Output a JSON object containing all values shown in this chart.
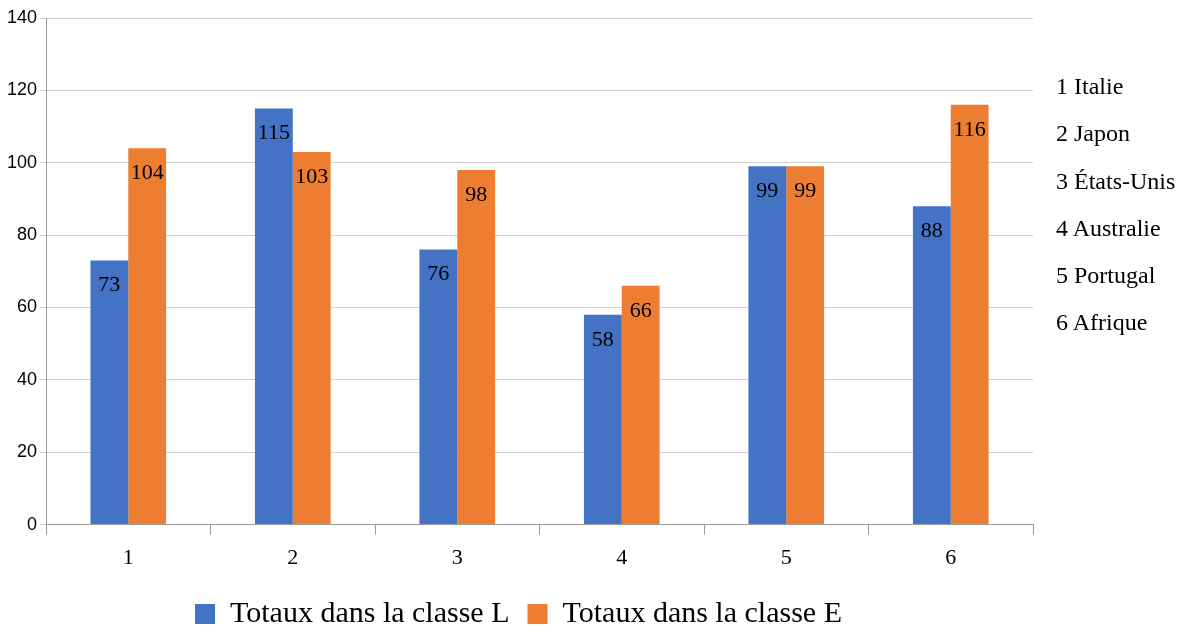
{
  "chart_data": {
    "type": "bar",
    "categories": [
      "1",
      "2",
      "3",
      "4",
      "5",
      "6"
    ],
    "series": [
      {
        "name": "Totaux dans la classe L",
        "color": "#4472c4",
        "values": [
          73,
          115,
          76,
          58,
          99,
          88
        ]
      },
      {
        "name": "Totaux dans la classe E",
        "color": "#ed7d31",
        "values": [
          104,
          103,
          98,
          66,
          99,
          116
        ]
      }
    ],
    "ylim": [
      0,
      140
    ],
    "yticks": [
      0,
      20,
      40,
      60,
      80,
      100,
      120,
      140
    ],
    "grid": "y",
    "legend": "bottom",
    "data_labels": true,
    "annotations": [
      "1 Italie",
      "2 Japon",
      "3 États-Unis",
      "4 Australie",
      "5 Portugal",
      "6 Afrique"
    ]
  }
}
